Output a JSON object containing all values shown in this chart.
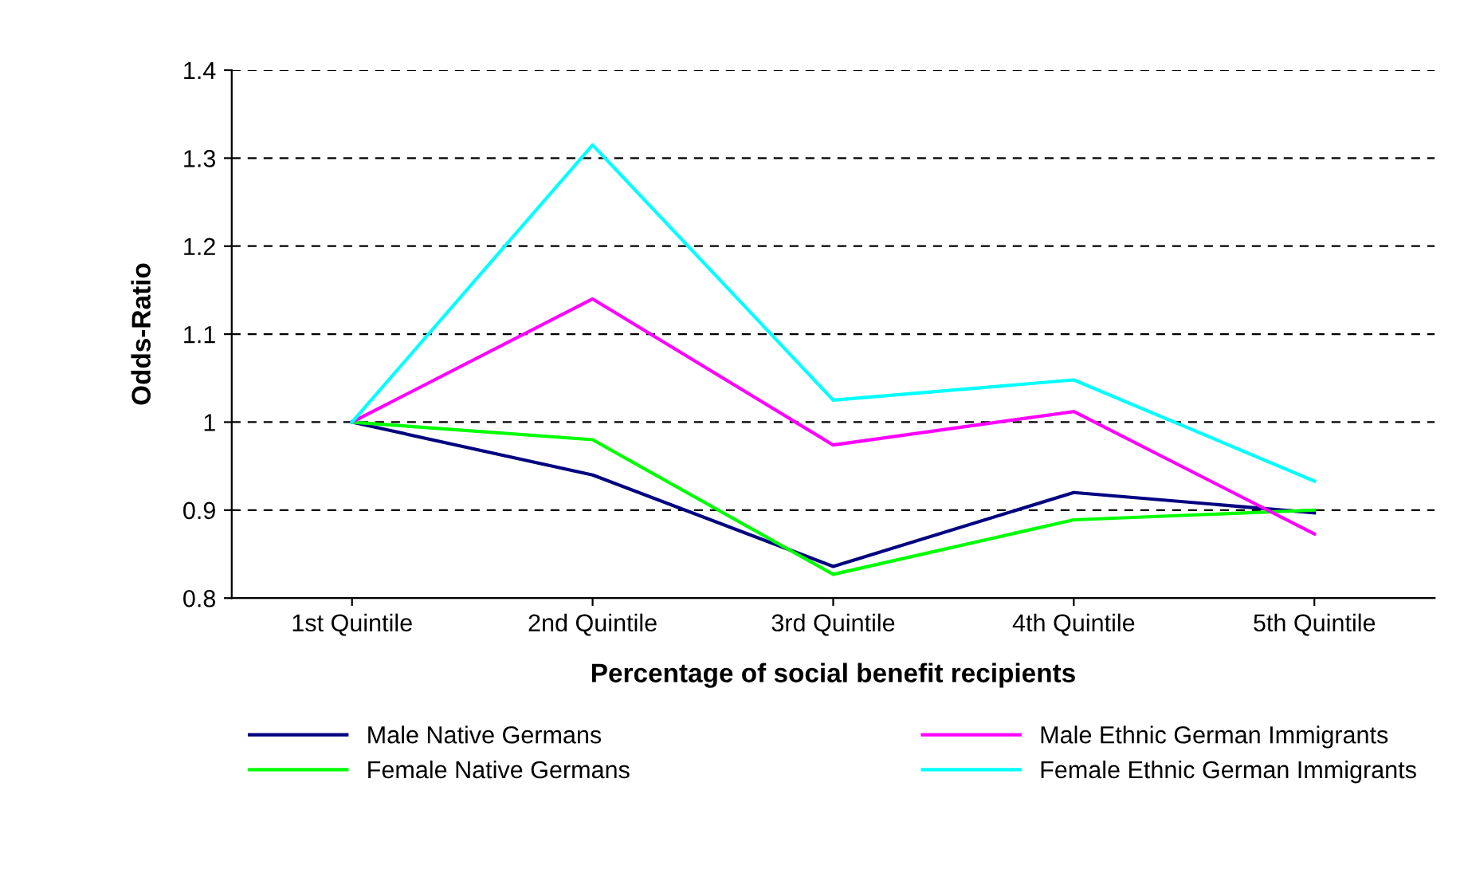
{
  "chart_data": {
    "type": "line",
    "xlabel": "Percentage of social benefit recipients",
    "ylabel": "Odds-Ratio",
    "categories": [
      "1st Quintile",
      "2nd Quintile",
      "3rd Quintile",
      "4th Quintile",
      "5th Quintile"
    ],
    "series": [
      {
        "name": "Male Native Germans",
        "color": "#000080",
        "values": [
          1.0,
          0.94,
          0.836,
          0.92,
          0.897
        ]
      },
      {
        "name": "Female Native Germans",
        "color": "#00ff00",
        "values": [
          1.0,
          0.98,
          0.827,
          0.889,
          0.9
        ]
      },
      {
        "name": "Male Ethnic German Immigrants",
        "color": "#ff00ff",
        "values": [
          1.0,
          1.14,
          0.974,
          1.012,
          0.873
        ]
      },
      {
        "name": "Female Ethnic German Immigrants",
        "color": "#00ffff",
        "values": [
          1.0,
          1.315,
          1.025,
          1.048,
          0.933
        ]
      }
    ],
    "ylim": [
      0.8,
      1.4
    ],
    "yticks": [
      0.8,
      0.9,
      1,
      1.1,
      1.2,
      1.3,
      1.4
    ],
    "grid": "y",
    "legend": "bottom",
    "marker": "none",
    "line_style": "solid"
  }
}
